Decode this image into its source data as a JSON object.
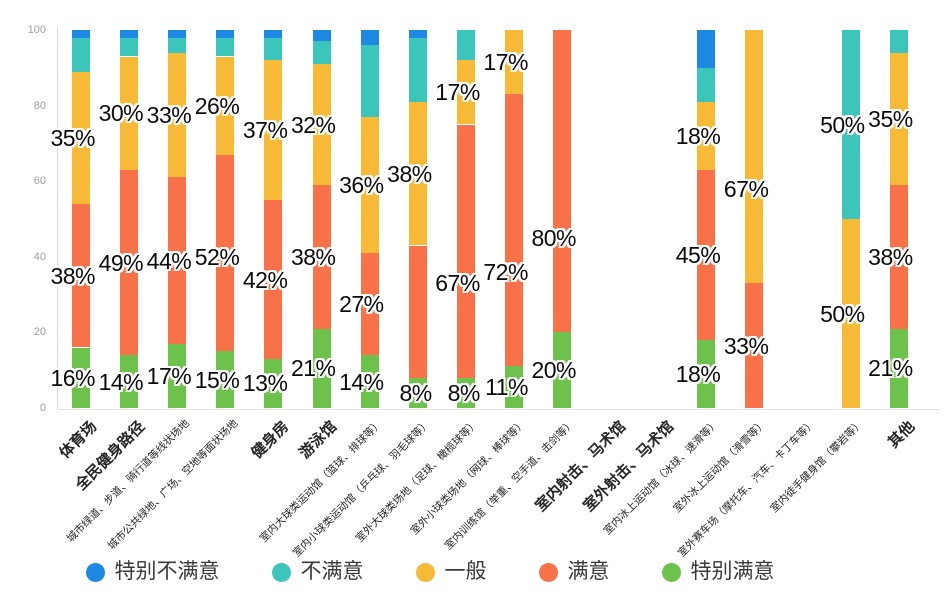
{
  "chart_data": {
    "type": "bar",
    "stacked": true,
    "unit": "%",
    "title": "",
    "xlabel": "",
    "ylabel": "",
    "ylim": [
      0,
      100
    ],
    "ytick_labels": [
      "0",
      "20",
      "40",
      "60",
      "80",
      "100"
    ],
    "grid": false,
    "legend_position": "bottom",
    "categories": [
      {
        "label": "体育场",
        "emphasis": true
      },
      {
        "label": "全民健身路径",
        "emphasis": true
      },
      {
        "label": "城市绿道、步道、骑行道等线状场地",
        "emphasis": false
      },
      {
        "label": "城市公共绿地、广场、空地等面状场地",
        "emphasis": false
      },
      {
        "label": "健身房",
        "emphasis": true
      },
      {
        "label": "游泳馆",
        "emphasis": true
      },
      {
        "label": "室内大球类运动馆（篮球、排球等）",
        "emphasis": false
      },
      {
        "label": "室内小球类运动馆（乒乓球、羽毛球等）",
        "emphasis": false
      },
      {
        "label": "室外大球类场地（足球、橄榄球等）",
        "emphasis": false
      },
      {
        "label": "室外小球类场地（网球、棒球等）",
        "emphasis": false
      },
      {
        "label": "室内训练馆（举重、空手道、击剑等）",
        "emphasis": false
      },
      {
        "label": "室内射击、马术馆",
        "emphasis": true
      },
      {
        "label": "室外射击、马术馆",
        "emphasis": true
      },
      {
        "label": "室内冰上运动馆（冰球、速滑等）",
        "emphasis": false
      },
      {
        "label": "室外冰上运动馆（滑雪等）",
        "emphasis": false
      },
      {
        "label": "室外赛车场（摩托车、汽车、卡丁车等）",
        "emphasis": false
      },
      {
        "label": "室内徒手健身馆（攀岩等）",
        "emphasis": false
      },
      {
        "label": "其他",
        "emphasis": true
      }
    ],
    "series": [
      {
        "name": "特别不满意",
        "semantic": "very-dissatisfied",
        "color": "#1e88e5",
        "values": [
          2,
          2,
          2,
          2,
          2,
          3,
          4,
          2,
          0,
          0,
          0,
          0,
          0,
          10,
          0,
          0,
          0,
          0
        ],
        "labels": [
          null,
          null,
          null,
          null,
          null,
          null,
          null,
          null,
          null,
          null,
          null,
          null,
          null,
          null,
          null,
          null,
          null,
          null
        ]
      },
      {
        "name": "不满意",
        "semantic": "dissatisfied",
        "color": "#3cc5bb",
        "values": [
          9,
          5,
          4,
          5,
          6,
          6,
          19,
          17,
          8,
          0,
          0,
          0,
          0,
          9,
          0,
          0,
          50,
          6
        ],
        "labels": [
          null,
          null,
          null,
          null,
          null,
          null,
          null,
          null,
          null,
          null,
          null,
          null,
          null,
          null,
          null,
          null,
          "50%",
          null
        ]
      },
      {
        "name": "一般",
        "semantic": "neutral",
        "color": "#f7ba36",
        "values": [
          35,
          30,
          33,
          26,
          37,
          32,
          36,
          38,
          17,
          17,
          0,
          0,
          0,
          18,
          67,
          0,
          50,
          35
        ],
        "labels": [
          "35%",
          "30%",
          "33%",
          "26%",
          "37%",
          "32%",
          "36%",
          "38%",
          "17%",
          "17%",
          null,
          null,
          null,
          "18%",
          "67%",
          null,
          "50%",
          "35%"
        ]
      },
      {
        "name": "满意",
        "semantic": "satisfied",
        "color": "#f87249",
        "values": [
          38,
          49,
          44,
          52,
          42,
          38,
          27,
          35,
          67,
          72,
          80,
          0,
          0,
          45,
          33,
          0,
          0,
          38
        ],
        "labels": [
          "38%",
          "49%",
          "44%",
          "52%",
          "42%",
          "38%",
          "27%",
          null,
          "67%",
          "72%",
          "80%",
          null,
          null,
          "45%",
          "33%",
          null,
          null,
          "38%"
        ]
      },
      {
        "name": "特别满意",
        "semantic": "very-satisfied",
        "color": "#6cc24a",
        "values": [
          16,
          14,
          17,
          15,
          13,
          21,
          14,
          8,
          8,
          11,
          20,
          0,
          0,
          18,
          0,
          0,
          0,
          21
        ],
        "labels": [
          "16%",
          "14%",
          "17%",
          "15%",
          "13%",
          "21%",
          "14%",
          "8%",
          "8%",
          "11%",
          "20%",
          null,
          null,
          "18%",
          null,
          null,
          null,
          "21%"
        ]
      }
    ]
  }
}
